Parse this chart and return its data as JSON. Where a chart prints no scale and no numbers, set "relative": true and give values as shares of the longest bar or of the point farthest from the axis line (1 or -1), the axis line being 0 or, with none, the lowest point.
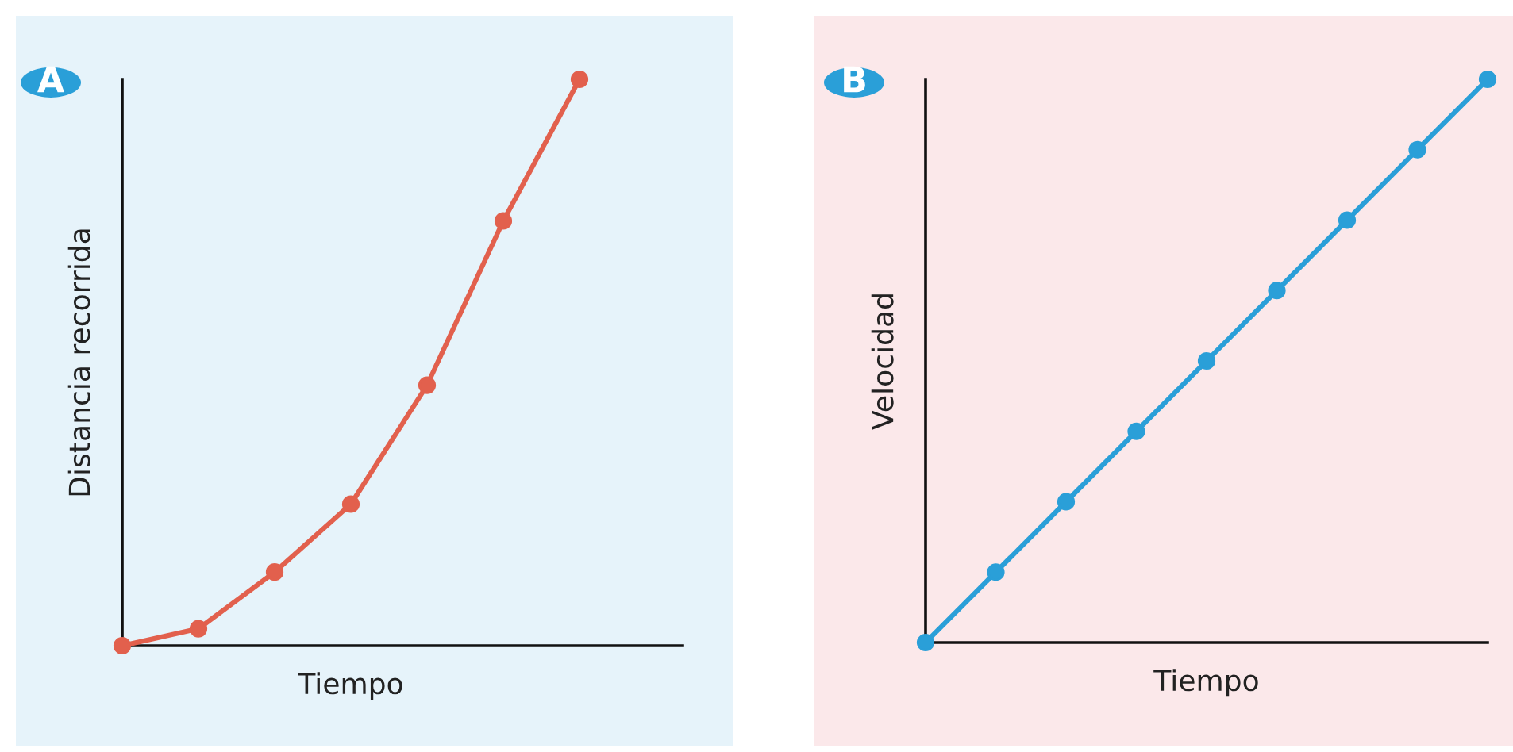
{
  "chart_data": [
    {
      "type": "line",
      "title": "A",
      "xlabel": "Tiempo",
      "ylabel": "Distancia recorrida",
      "relative": true,
      "tick_labels": false,
      "categories": [
        null,
        null,
        null,
        null,
        null,
        null,
        null
      ],
      "series": [
        {
          "type": "line",
          "color": "#e2604d",
          "marker": "circle",
          "values": [
            0,
            0.03,
            0.13,
            0.25,
            0.46,
            0.75,
            1
          ]
        }
      ]
    },
    {
      "type": "line",
      "title": "B",
      "xlabel": "Tiempo",
      "ylabel": "Velocidad",
      "relative": true,
      "tick_labels": false,
      "marker": "circle",
      "categories": [
        null,
        null,
        null,
        null,
        null,
        null,
        null,
        null,
        null
      ],
      "series": [
        {
          "color": "#2a9fd8",
          "values": [
            0,
            0.125,
            0.25,
            0.375,
            0.5,
            0.625,
            0.75,
            0.875,
            1
          ]
        }
      ]
    }
  ]
}
